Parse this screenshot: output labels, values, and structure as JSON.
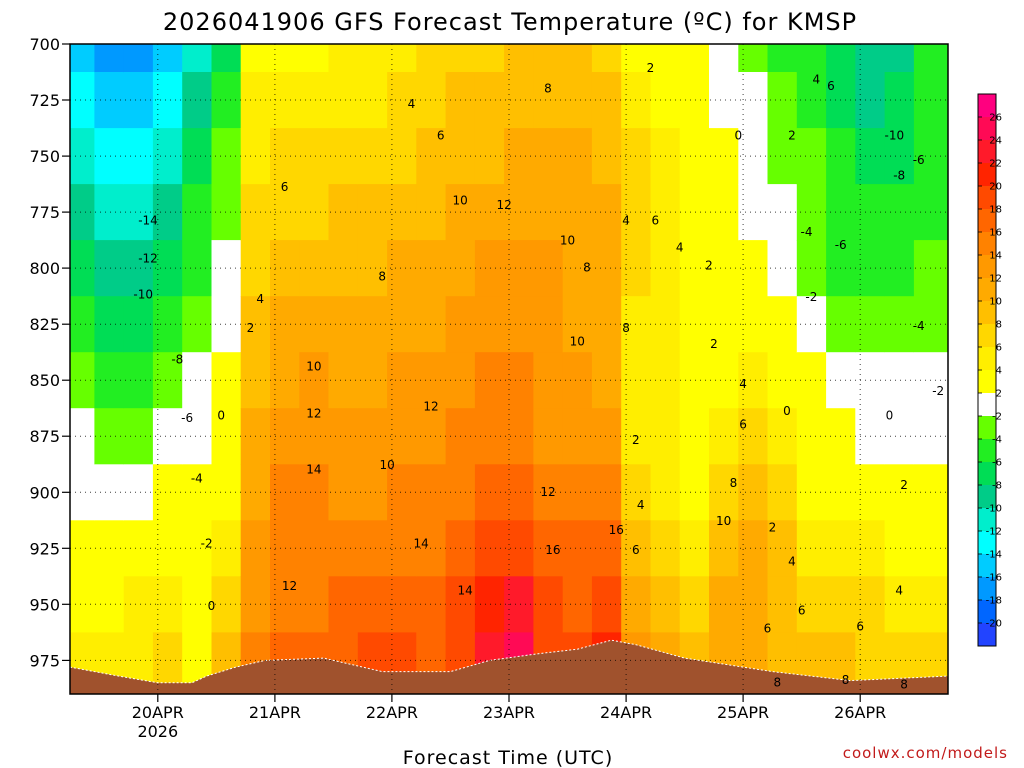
{
  "chart_data": {
    "type": "heatmap",
    "title": "2026041906 GFS Forecast Temperature (ºC) for KMSP",
    "xlabel": "Forecast Time (UTC)",
    "ylabel": "",
    "y_ticks": [
      700,
      725,
      750,
      775,
      800,
      825,
      850,
      875,
      900,
      925,
      950,
      975
    ],
    "ylim": [
      700,
      990
    ],
    "x_ticks": [
      {
        "label": "20APR",
        "sub": "2026",
        "hour": 24
      },
      {
        "label": "21APR",
        "sub": "",
        "hour": 48
      },
      {
        "label": "22APR",
        "sub": "",
        "hour": 72
      },
      {
        "label": "23APR",
        "sub": "",
        "hour": 96
      },
      {
        "label": "24APR",
        "sub": "",
        "hour": 120
      },
      {
        "label": "25APR",
        "sub": "",
        "hour": 144
      },
      {
        "label": "26APR",
        "sub": "",
        "hour": 168
      }
    ],
    "xlim": [
      6,
      186
    ],
    "colorbar": {
      "levels": [
        26,
        24,
        22,
        20,
        18,
        16,
        14,
        12,
        10,
        8,
        6,
        4,
        2,
        -2,
        -4,
        -6,
        -8,
        -10,
        -12,
        -14,
        -16,
        -18,
        -20
      ],
      "colors": [
        "#ff007f",
        "#ff0a55",
        "#ff1a2a",
        "#ff2400",
        "#ff4a00",
        "#ff6600",
        "#ff8200",
        "#ff9900",
        "#ffaa00",
        "#ffbf00",
        "#ffd700",
        "#ffee00",
        "#ffff00",
        "#ffffff",
        "#66ff00",
        "#22ee22",
        "#00dd55",
        "#00cc88",
        "#00eecc",
        "#00ffff",
        "#00ccff",
        "#0099ff",
        "#0066ff",
        "#2244ff"
      ]
    },
    "columns": [
      {
        "hour": 8,
        "band": [
          -16,
          -14,
          -12,
          -10,
          -8,
          -6,
          -4,
          -2,
          -2,
          2,
          2,
          4
        ]
      },
      {
        "hour": 14,
        "band": [
          -18,
          -16,
          -14,
          -12,
          -10,
          -8,
          -6,
          -4,
          -2,
          2,
          2,
          4
        ]
      },
      {
        "hour": 20,
        "band": [
          -18,
          -16,
          -14,
          -12,
          -10,
          -8,
          -6,
          -4,
          -2,
          2,
          4,
          4
        ]
      },
      {
        "hour": 26,
        "band": [
          -16,
          -14,
          -12,
          -10,
          -8,
          -6,
          -4,
          -2,
          2,
          2,
          4,
          6
        ]
      },
      {
        "hour": 32,
        "band": [
          -12,
          -10,
          -8,
          -6,
          -6,
          -4,
          -2,
          -2,
          2,
          2,
          2,
          2
        ]
      },
      {
        "hour": 38,
        "band": [
          -8,
          -6,
          -4,
          -4,
          -2,
          -2,
          2,
          2,
          2,
          4,
          6,
          8
        ]
      },
      {
        "hour": 44,
        "band": [
          2,
          4,
          4,
          6,
          6,
          8,
          8,
          10,
          10,
          12,
          12,
          14
        ]
      },
      {
        "hour": 50,
        "band": [
          2,
          4,
          6,
          6,
          8,
          10,
          10,
          12,
          14,
          14,
          14,
          16
        ]
      },
      {
        "hour": 56,
        "band": [
          2,
          4,
          6,
          6,
          8,
          10,
          12,
          12,
          14,
          14,
          14,
          16
        ]
      },
      {
        "hour": 62,
        "band": [
          4,
          4,
          6,
          8,
          8,
          10,
          10,
          12,
          12,
          14,
          16,
          16
        ]
      },
      {
        "hour": 68,
        "band": [
          4,
          4,
          6,
          8,
          8,
          10,
          10,
          12,
          12,
          14,
          16,
          18
        ]
      },
      {
        "hour": 74,
        "band": [
          4,
          6,
          6,
          8,
          10,
          10,
          12,
          12,
          14,
          14,
          16,
          18
        ]
      },
      {
        "hour": 80,
        "band": [
          6,
          6,
          8,
          8,
          10,
          10,
          12,
          12,
          14,
          14,
          16,
          16
        ]
      },
      {
        "hour": 86,
        "band": [
          6,
          8,
          8,
          10,
          10,
          12,
          12,
          14,
          14,
          16,
          18,
          18
        ]
      },
      {
        "hour": 92,
        "band": [
          6,
          8,
          8,
          10,
          12,
          12,
          14,
          14,
          16,
          18,
          20,
          22
        ]
      },
      {
        "hour": 98,
        "band": [
          8,
          8,
          10,
          10,
          12,
          12,
          14,
          14,
          16,
          18,
          22,
          24
        ]
      },
      {
        "hour": 104,
        "band": [
          8,
          8,
          10,
          10,
          12,
          12,
          12,
          12,
          14,
          16,
          18,
          18
        ]
      },
      {
        "hour": 110,
        "band": [
          8,
          8,
          10,
          10,
          10,
          10,
          12,
          12,
          14,
          16,
          16,
          18
        ]
      },
      {
        "hour": 116,
        "band": [
          6,
          8,
          8,
          10,
          10,
          10,
          10,
          12,
          14,
          16,
          18,
          20
        ]
      },
      {
        "hour": 122,
        "band": [
          2,
          4,
          6,
          6,
          6,
          4,
          4,
          4,
          6,
          8,
          10,
          12
        ]
      },
      {
        "hour": 128,
        "band": [
          2,
          2,
          4,
          4,
          4,
          4,
          4,
          4,
          4,
          6,
          8,
          10
        ]
      },
      {
        "hour": 134,
        "band": [
          2,
          2,
          2,
          2,
          2,
          2,
          2,
          2,
          2,
          4,
          6,
          8
        ]
      },
      {
        "hour": 140,
        "band": [
          -2,
          -2,
          2,
          2,
          2,
          2,
          2,
          4,
          6,
          8,
          10,
          10
        ]
      },
      {
        "hour": 146,
        "band": [
          -4,
          -2,
          -2,
          -2,
          2,
          2,
          4,
          6,
          8,
          10,
          10,
          10
        ]
      },
      {
        "hour": 152,
        "band": [
          -6,
          -4,
          -4,
          -2,
          -2,
          2,
          2,
          4,
          6,
          8,
          8,
          8
        ]
      },
      {
        "hour": 158,
        "band": [
          -6,
          -6,
          -4,
          -4,
          -4,
          -2,
          2,
          2,
          2,
          4,
          6,
          8
        ]
      },
      {
        "hour": 164,
        "band": [
          -8,
          -8,
          -6,
          -6,
          -6,
          -4,
          -2,
          2,
          2,
          4,
          6,
          8
        ]
      },
      {
        "hour": 170,
        "band": [
          -10,
          -10,
          -8,
          -6,
          -6,
          -4,
          -2,
          -2,
          2,
          4,
          6,
          6
        ]
      },
      {
        "hour": 176,
        "band": [
          -10,
          -8,
          -8,
          -6,
          -6,
          -4,
          -2,
          -2,
          2,
          2,
          4,
          6
        ]
      },
      {
        "hour": 182,
        "band": [
          -6,
          -6,
          -6,
          -6,
          -4,
          -4,
          -2,
          -2,
          2,
          2,
          4,
          6
        ]
      }
    ],
    "contour_labels": [
      {
        "text": "-14",
        "hour": 22,
        "p": 779
      },
      {
        "text": "-12",
        "hour": 22,
        "p": 796
      },
      {
        "text": "-10",
        "hour": 21,
        "p": 812
      },
      {
        "text": "-8",
        "hour": 28,
        "p": 841
      },
      {
        "text": "-6",
        "hour": 30,
        "p": 867
      },
      {
        "text": "-4",
        "hour": 32,
        "p": 894
      },
      {
        "text": "-2",
        "hour": 34,
        "p": 923
      },
      {
        "text": "0",
        "hour": 37,
        "p": 866
      },
      {
        "text": "0",
        "hour": 35,
        "p": 951
      },
      {
        "text": "2",
        "hour": 43,
        "p": 827
      },
      {
        "text": "4",
        "hour": 45,
        "p": 814
      },
      {
        "text": "6",
        "hour": 50,
        "p": 764
      },
      {
        "text": "8",
        "hour": 70,
        "p": 804
      },
      {
        "text": "10",
        "hour": 56,
        "p": 844
      },
      {
        "text": "12",
        "hour": 56,
        "p": 865
      },
      {
        "text": "14",
        "hour": 56,
        "p": 890
      },
      {
        "text": "12",
        "hour": 51,
        "p": 942
      },
      {
        "text": "10",
        "hour": 71,
        "p": 888
      },
      {
        "text": "12",
        "hour": 80,
        "p": 862
      },
      {
        "text": "14",
        "hour": 78,
        "p": 923
      },
      {
        "text": "14",
        "hour": 87,
        "p": 944
      },
      {
        "text": "4",
        "hour": 76,
        "p": 727
      },
      {
        "text": "6",
        "hour": 82,
        "p": 741
      },
      {
        "text": "10",
        "hour": 86,
        "p": 770
      },
      {
        "text": "12",
        "hour": 95,
        "p": 772
      },
      {
        "text": "8",
        "hour": 104,
        "p": 720
      },
      {
        "text": "10",
        "hour": 108,
        "p": 788
      },
      {
        "text": "8",
        "hour": 112,
        "p": 800
      },
      {
        "text": "10",
        "hour": 110,
        "p": 833
      },
      {
        "text": "12",
        "hour": 104,
        "p": 900
      },
      {
        "text": "16",
        "hour": 105,
        "p": 926
      },
      {
        "text": "16",
        "hour": 118,
        "p": 917
      },
      {
        "text": "8",
        "hour": 120,
        "p": 827
      },
      {
        "text": "4",
        "hour": 120,
        "p": 779
      },
      {
        "text": "6",
        "hour": 126,
        "p": 779
      },
      {
        "text": "4",
        "hour": 131,
        "p": 791
      },
      {
        "text": "2",
        "hour": 125,
        "p": 711
      },
      {
        "text": "2",
        "hour": 137,
        "p": 799
      },
      {
        "text": "2",
        "hour": 122,
        "p": 877
      },
      {
        "text": "4",
        "hour": 123,
        "p": 906
      },
      {
        "text": "6",
        "hour": 122,
        "p": 926
      },
      {
        "text": "0",
        "hour": 143,
        "p": 741
      },
      {
        "text": "2",
        "hour": 138,
        "p": 834
      },
      {
        "text": "4",
        "hour": 144,
        "p": 852
      },
      {
        "text": "6",
        "hour": 144,
        "p": 870
      },
      {
        "text": "8",
        "hour": 142,
        "p": 896
      },
      {
        "text": "10",
        "hour": 140,
        "p": 913
      },
      {
        "text": "0",
        "hour": 153,
        "p": 864
      },
      {
        "text": "2",
        "hour": 150,
        "p": 916
      },
      {
        "text": "4",
        "hour": 154,
        "p": 931
      },
      {
        "text": "6",
        "hour": 156,
        "p": 953
      },
      {
        "text": "6",
        "hour": 149,
        "p": 961
      },
      {
        "text": "8",
        "hour": 151,
        "p": 985
      },
      {
        "text": "4",
        "hour": 159,
        "p": 716
      },
      {
        "text": "6",
        "hour": 162,
        "p": 719
      },
      {
        "text": "2",
        "hour": 154,
        "p": 741
      },
      {
        "text": "-4",
        "hour": 157,
        "p": 784
      },
      {
        "text": "-6",
        "hour": 164,
        "p": 790
      },
      {
        "text": "-2",
        "hour": 158,
        "p": 813
      },
      {
        "text": "-10",
        "hour": 175,
        "p": 741
      },
      {
        "text": "-6",
        "hour": 180,
        "p": 752
      },
      {
        "text": "-8",
        "hour": 176,
        "p": 759
      },
      {
        "text": "-4",
        "hour": 180,
        "p": 826
      },
      {
        "text": "0",
        "hour": 174,
        "p": 866
      },
      {
        "text": "-2",
        "hour": 184,
        "p": 855
      },
      {
        "text": "2",
        "hour": 177,
        "p": 897
      },
      {
        "text": "4",
        "hour": 176,
        "p": 944
      },
      {
        "text": "6",
        "hour": 168,
        "p": 960
      },
      {
        "text": "8",
        "hour": 165,
        "p": 984
      },
      {
        "text": "8",
        "hour": 177,
        "p": 986
      }
    ],
    "terrain": {
      "color": "#a0522d",
      "points": [
        [
          6,
          978
        ],
        [
          16,
          982
        ],
        [
          24,
          985
        ],
        [
          31,
          985
        ],
        [
          34,
          982
        ],
        [
          40,
          978
        ],
        [
          46,
          975
        ],
        [
          58,
          974
        ],
        [
          70,
          980
        ],
        [
          84,
          980
        ],
        [
          92,
          975
        ],
        [
          102,
          972
        ],
        [
          110,
          970
        ],
        [
          117,
          966
        ],
        [
          122,
          968
        ],
        [
          132,
          974
        ],
        [
          150,
          980
        ],
        [
          166,
          984
        ],
        [
          186,
          982
        ]
      ]
    }
  },
  "credit": "coolwx.com/models"
}
